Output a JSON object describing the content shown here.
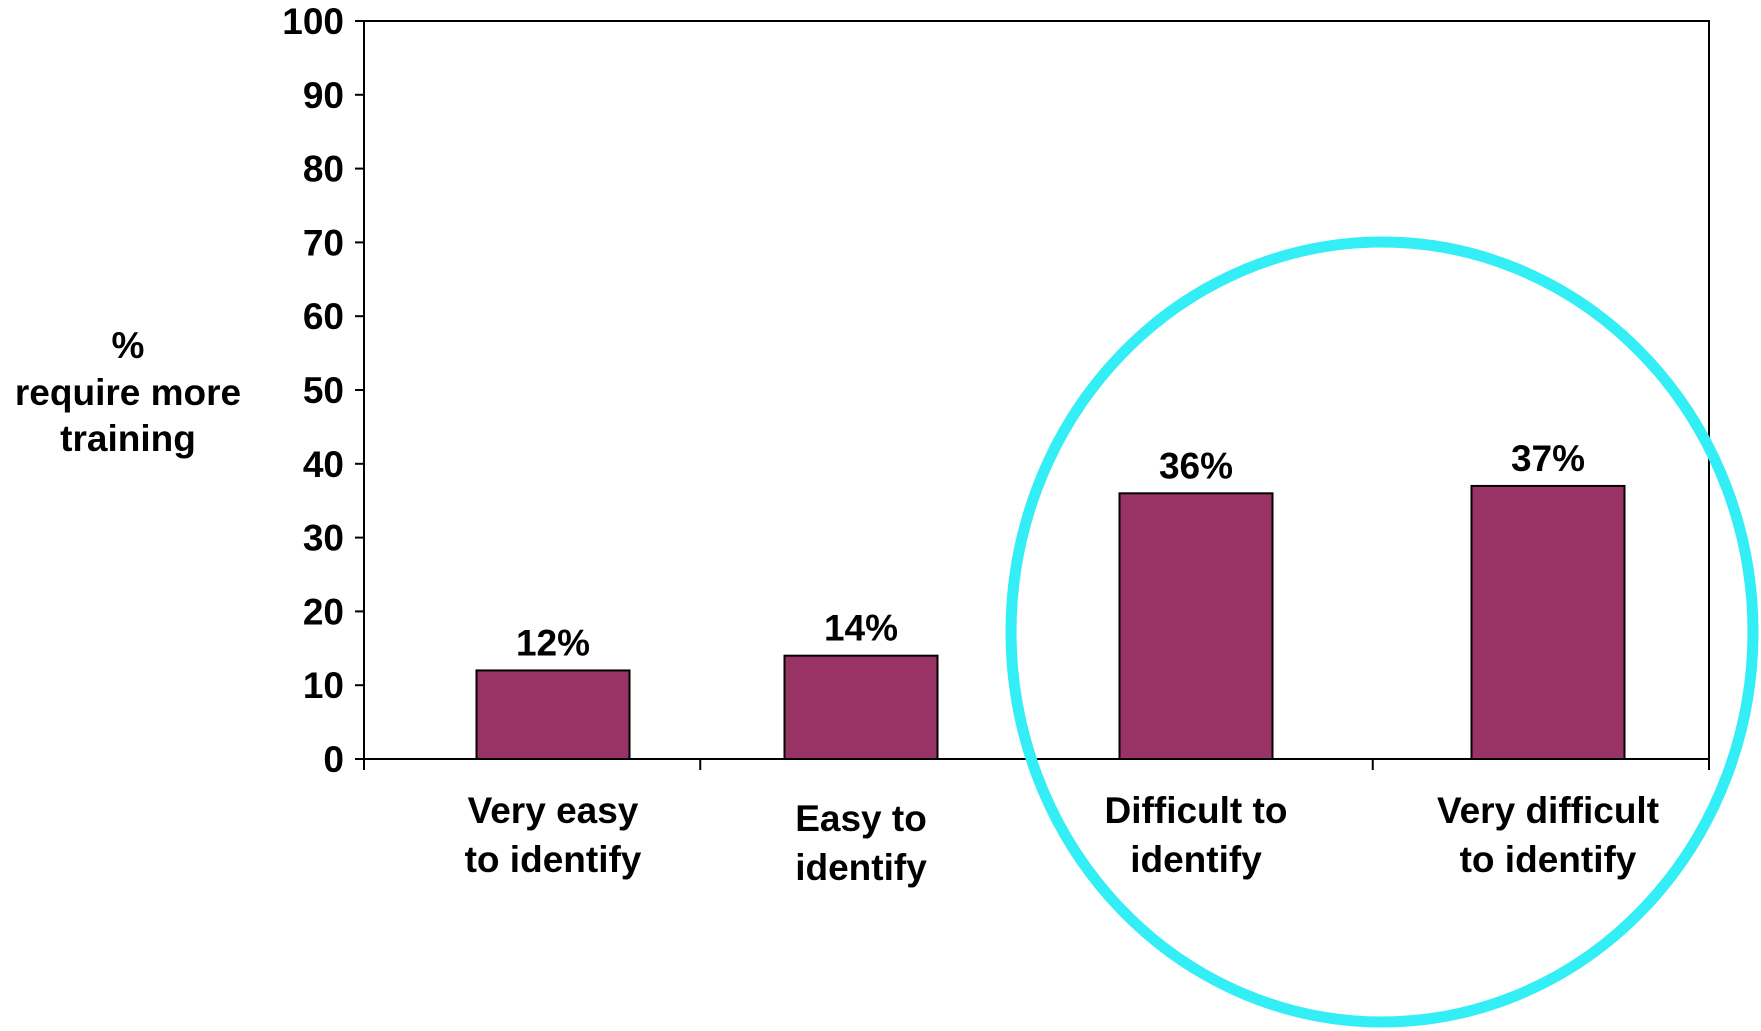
{
  "chart_data": {
    "type": "bar",
    "categories": [
      [
        "Very easy",
        "to identify"
      ],
      [
        "Easy to",
        "identify"
      ],
      [
        "Difficult to",
        "identify"
      ],
      [
        "Very difficult",
        "to identify"
      ]
    ],
    "values": [
      12,
      14,
      36,
      37
    ],
    "value_labels": [
      "12%",
      "14%",
      "36%",
      "37%"
    ],
    "ylabel": [
      "%",
      "require more",
      "training"
    ],
    "xlabel": "",
    "ylim": [
      0,
      100
    ],
    "yticks": [
      0,
      10,
      20,
      30,
      40,
      50,
      60,
      70,
      80,
      90,
      100
    ],
    "grid": false,
    "legend": "none",
    "highlight": "circle around the last two categories"
  },
  "colors": {
    "bar_fill": "#993366",
    "bar_stroke": "#000000",
    "axis": "#000000",
    "highlight_circle": "#33EEF5"
  }
}
